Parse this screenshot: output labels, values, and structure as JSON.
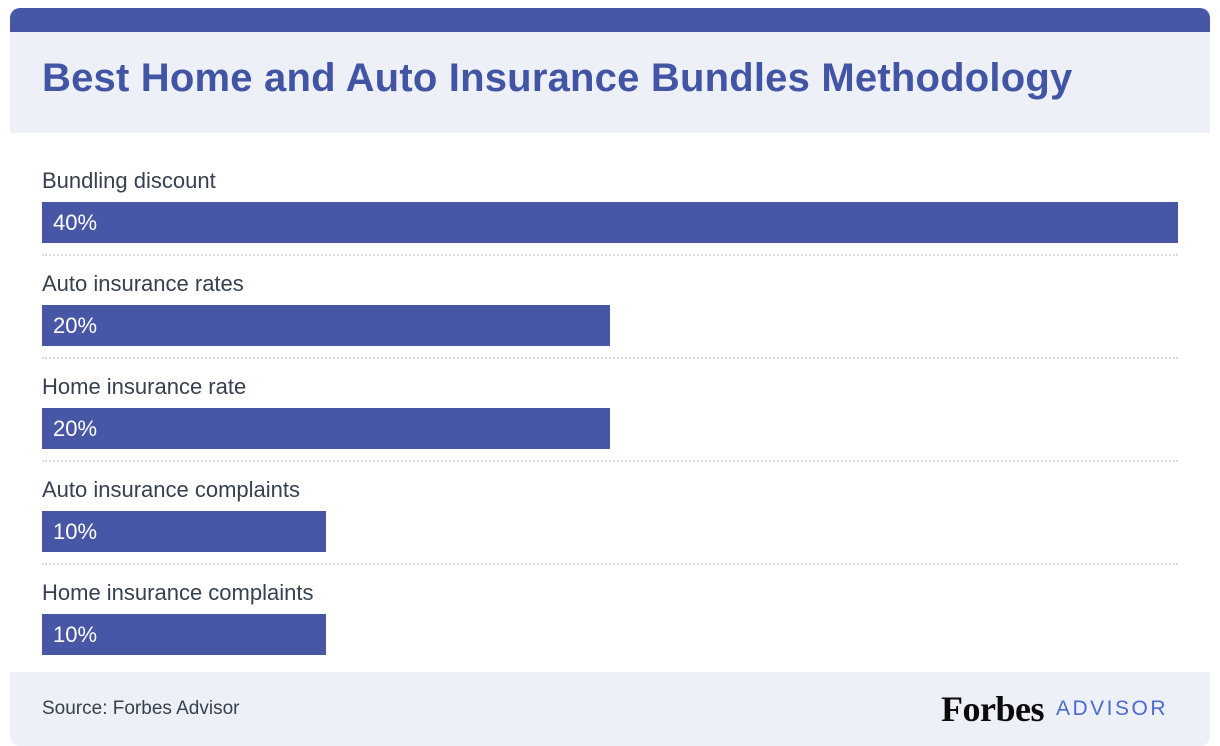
{
  "header": {
    "title": "Best Home and Auto Insurance Bundles Methodology"
  },
  "chart_data": {
    "type": "bar",
    "orientation": "horizontal",
    "title": "Best Home and Auto Insurance Bundles Methodology",
    "categories": [
      "Bundling discount",
      "Auto insurance rates",
      "Home insurance rate",
      "Auto insurance complaints",
      "Home insurance complaints"
    ],
    "values": [
      40,
      20,
      20,
      10,
      10
    ],
    "value_labels": [
      "40%",
      "20%",
      "20%",
      "10%",
      "10%"
    ],
    "max_value": 40,
    "bar_color": "#4757a5",
    "value_label_color": "#ffffff",
    "grid": "dotted-row-separators",
    "legend": "none"
  },
  "footer": {
    "source": "Source: Forbes Advisor",
    "logo_forbes": "Forbes",
    "logo_advisor": "ADVISOR"
  },
  "colors": {
    "accent_blue": "#4757a5",
    "title_blue": "#4254a4",
    "header_footer_bg": "#edf0f7",
    "label_text": "#36404e",
    "separator": "#d9d9d9",
    "advisor_blue": "#4b6ad0",
    "forbes_black": "#0b0b0b"
  }
}
